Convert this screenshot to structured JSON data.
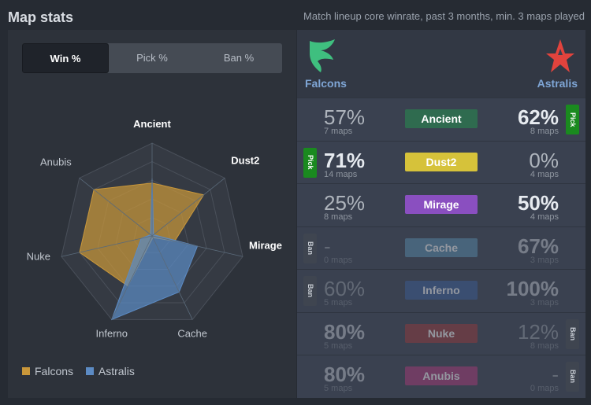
{
  "header": {
    "title": "Map stats",
    "subtitle": "Match lineup core winrate, past 3 months, min. 3 maps played"
  },
  "tabs": [
    {
      "label": "Win %",
      "active": true
    },
    {
      "label": "Pick %",
      "active": false
    },
    {
      "label": "Ban %",
      "active": false
    }
  ],
  "chart_data": {
    "type": "radar",
    "axes": [
      "Ancient",
      "Dust2",
      "Mirage",
      "Cache",
      "Inferno",
      "Nuke",
      "Anubis"
    ],
    "max": 100,
    "series": [
      {
        "name": "Falcons",
        "color": "#c9973a",
        "values": [
          57,
          71,
          25,
          0,
          60,
          80,
          80
        ]
      },
      {
        "name": "Astralis",
        "color": "#5c8bc4",
        "values": [
          62,
          0,
          50,
          67,
          100,
          12,
          0
        ]
      }
    ]
  },
  "legend": [
    {
      "label": "Falcons",
      "color": "#c9973a"
    },
    {
      "label": "Astralis",
      "color": "#5c8bc4"
    }
  ],
  "teams": {
    "left": {
      "name": "Falcons",
      "logo_icon": "falcons-logo-icon",
      "color": "#3fbf7f"
    },
    "right": {
      "name": "Astralis",
      "logo_icon": "astralis-logo-icon",
      "color": "#e2433d"
    }
  },
  "maps": [
    {
      "name": "Ancient",
      "color": "#2f6b4f",
      "left_pct": "57%",
      "left_maps": "7 maps",
      "left_strong": false,
      "right_pct": "62%",
      "right_maps": "8 maps",
      "right_strong": true,
      "left_tag": "",
      "right_tag": "Pick",
      "dim": false
    },
    {
      "name": "Dust2",
      "color": "#d6c23a",
      "left_pct": "71%",
      "left_maps": "14 maps",
      "left_strong": true,
      "right_pct": "0%",
      "right_maps": "4 maps",
      "right_strong": false,
      "left_tag": "Pick",
      "right_tag": "",
      "dim": false
    },
    {
      "name": "Mirage",
      "color": "#8a4fc0",
      "left_pct": "25%",
      "left_maps": "8 maps",
      "left_strong": false,
      "right_pct": "50%",
      "right_maps": "4 maps",
      "right_strong": true,
      "left_tag": "",
      "right_tag": "",
      "dim": false
    },
    {
      "name": "Cache",
      "color": "#5a8fb0",
      "left_pct": "-",
      "left_maps": "0 maps",
      "left_strong": false,
      "right_pct": "67%",
      "right_maps": "3 maps",
      "right_strong": true,
      "left_tag": "Ban",
      "right_tag": "",
      "dim": true
    },
    {
      "name": "Inferno",
      "color": "#3b5e9a",
      "left_pct": "60%",
      "left_maps": "5 maps",
      "left_strong": false,
      "right_pct": "100%",
      "right_maps": "3 maps",
      "right_strong": true,
      "left_tag": "Ban",
      "right_tag": "",
      "dim": true
    },
    {
      "name": "Nuke",
      "color": "#9a3a3a",
      "left_pct": "80%",
      "left_maps": "5 maps",
      "left_strong": true,
      "right_pct": "12%",
      "right_maps": "8 maps",
      "right_strong": false,
      "left_tag": "",
      "right_tag": "Ban",
      "dim": true
    },
    {
      "name": "Anubis",
      "color": "#b03a7a",
      "left_pct": "80%",
      "left_maps": "5 maps",
      "left_strong": true,
      "right_pct": "-",
      "right_maps": "0 maps",
      "right_strong": false,
      "left_tag": "",
      "right_tag": "Ban",
      "dim": true
    }
  ]
}
